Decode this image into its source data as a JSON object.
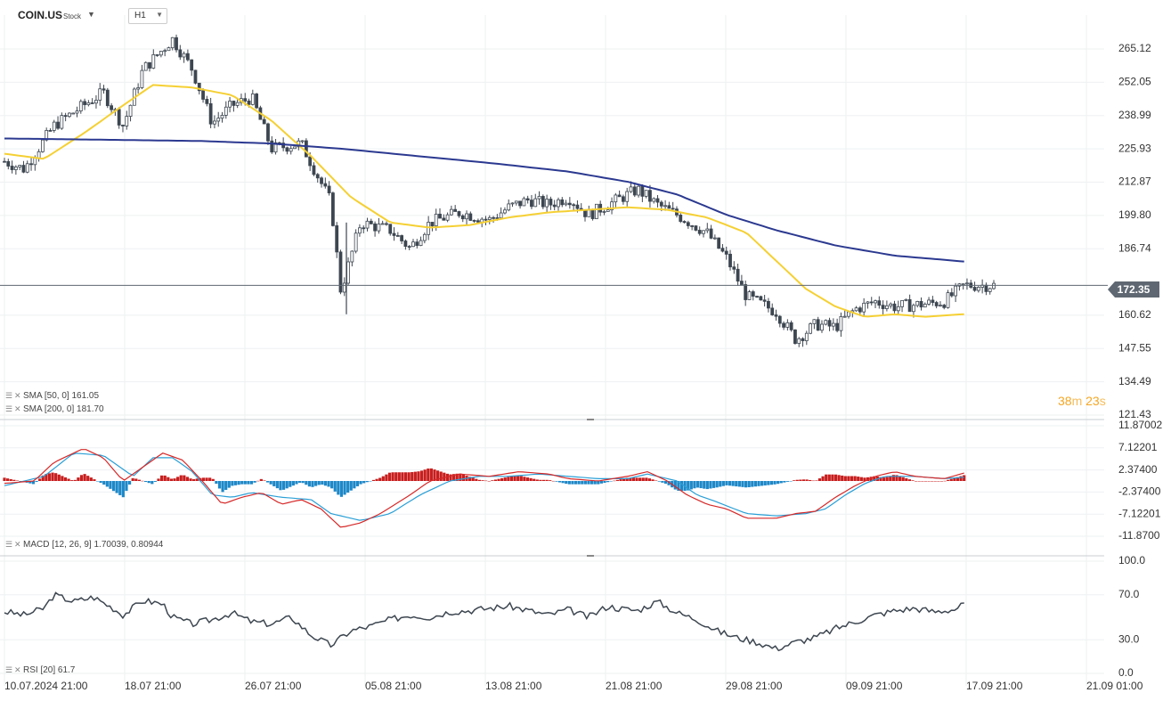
{
  "header": {
    "symbol": "COIN.US",
    "symbol_type": "Stock",
    "timeframe": "H1"
  },
  "legends": {
    "sma50": "SMA [50, 0] 161.05",
    "sma200": "SMA [200, 0] 181.70",
    "macd": "MACD [12, 26, 9] 1.70039, 0.80944",
    "rsi": "RSI [20] 61.7"
  },
  "current_price": "172.35",
  "candle_timer": {
    "minutes": "38",
    "m_unit": "m",
    "seconds": "23",
    "s_unit": "s"
  },
  "colors": {
    "candle": "#3d4650",
    "sma50": "#f5d033",
    "sma200": "#2b3990",
    "macd_line": "#d62828",
    "signal_line": "#2a9fd6",
    "hist_pos": "#c81e1e",
    "hist_neg": "#1e88c8",
    "rsi": "#3d4650",
    "grid": "#eef0f2",
    "axis_text": "#333333",
    "price_line": "#5f6872"
  },
  "chart_data": [
    {
      "type": "candlestick",
      "name": "COIN.US H1",
      "ylim": [
        121.43,
        271.5
      ],
      "y_ticks": [
        "265.12",
        "252.05",
        "238.99",
        "225.93",
        "212.87",
        "199.80",
        "186.74",
        "172.35",
        "160.62",
        "147.55",
        "134.49",
        "121.43"
      ],
      "x_ticks": [
        "10.07.2024  21:00",
        "18.07  21:00",
        "26.07  21:00",
        "05.08  21:00",
        "13.08  21:00",
        "21.08  21:00",
        "29.08  21:00",
        "09.09  21:00",
        "17.09  21:00",
        "21.09  01:00"
      ],
      "close_path": [
        [
          0,
          221
        ],
        [
          0.02,
          218
        ],
        [
          0.05,
          235
        ],
        [
          0.08,
          243
        ],
        [
          0.1,
          248
        ],
        [
          0.12,
          235
        ],
        [
          0.14,
          257
        ],
        [
          0.17,
          269
        ],
        [
          0.19,
          257
        ],
        [
          0.21,
          236
        ],
        [
          0.23,
          243
        ],
        [
          0.25,
          246
        ],
        [
          0.27,
          226
        ],
        [
          0.3,
          228
        ],
        [
          0.33,
          205
        ],
        [
          0.34,
          170
        ],
        [
          0.36,
          197
        ],
        [
          0.39,
          194
        ],
        [
          0.41,
          187
        ],
        [
          0.43,
          197
        ],
        [
          0.46,
          201
        ],
        [
          0.49,
          198
        ],
        [
          0.51,
          203
        ],
        [
          0.53,
          206
        ],
        [
          0.55,
          204
        ],
        [
          0.57,
          207
        ],
        [
          0.59,
          200
        ],
        [
          0.62,
          206
        ],
        [
          0.64,
          210
        ],
        [
          0.66,
          204
        ],
        [
          0.68,
          200
        ],
        [
          0.71,
          193
        ],
        [
          0.73,
          183
        ],
        [
          0.75,
          168
        ],
        [
          0.78,
          162
        ],
        [
          0.8,
          151
        ],
        [
          0.82,
          157
        ],
        [
          0.84,
          156
        ],
        [
          0.86,
          163
        ],
        [
          0.88,
          166
        ],
        [
          0.9,
          164
        ],
        [
          0.93,
          165
        ],
        [
          0.95,
          166
        ],
        [
          0.97,
          172.35
        ]
      ],
      "sma50_path": [
        [
          0,
          224
        ],
        [
          0.04,
          222
        ],
        [
          0.08,
          232
        ],
        [
          0.12,
          243
        ],
        [
          0.15,
          251
        ],
        [
          0.19,
          250
        ],
        [
          0.23,
          247
        ],
        [
          0.27,
          237
        ],
        [
          0.31,
          223
        ],
        [
          0.35,
          207
        ],
        [
          0.39,
          197
        ],
        [
          0.43,
          195
        ],
        [
          0.47,
          196
        ],
        [
          0.51,
          199
        ],
        [
          0.55,
          201
        ],
        [
          0.59,
          202
        ],
        [
          0.63,
          203
        ],
        [
          0.67,
          202
        ],
        [
          0.71,
          199
        ],
        [
          0.75,
          193
        ],
        [
          0.78,
          182
        ],
        [
          0.81,
          171
        ],
        [
          0.84,
          164
        ],
        [
          0.87,
          160
        ],
        [
          0.9,
          161
        ],
        [
          0.93,
          160
        ],
        [
          0.97,
          161.05
        ]
      ],
      "sma200_path": [
        [
          0,
          230
        ],
        [
          0.1,
          229.5
        ],
        [
          0.2,
          229
        ],
        [
          0.27,
          228
        ],
        [
          0.34,
          226
        ],
        [
          0.42,
          223
        ],
        [
          0.5,
          220
        ],
        [
          0.57,
          217
        ],
        [
          0.63,
          213
        ],
        [
          0.68,
          208
        ],
        [
          0.73,
          200
        ],
        [
          0.78,
          194
        ],
        [
          0.84,
          188
        ],
        [
          0.9,
          184
        ],
        [
          0.97,
          181.7
        ]
      ]
    },
    {
      "type": "bar",
      "name": "MACD [12, 26, 9]",
      "ylim": [
        -11.87,
        11.87
      ],
      "y_ticks": [
        "11.87002",
        "7.12201",
        "2.37400",
        "-2.37400",
        "-7.12201",
        "-11.8700"
      ],
      "macd_path": [
        [
          0,
          -0.5
        ],
        [
          0.03,
          0
        ],
        [
          0.05,
          4
        ],
        [
          0.08,
          7
        ],
        [
          0.1,
          5
        ],
        [
          0.12,
          0
        ],
        [
          0.14,
          3
        ],
        [
          0.16,
          6
        ],
        [
          0.18,
          4.5
        ],
        [
          0.2,
          0
        ],
        [
          0.22,
          -5
        ],
        [
          0.24,
          -3.5
        ],
        [
          0.26,
          -2.5
        ],
        [
          0.28,
          -5
        ],
        [
          0.3,
          -4
        ],
        [
          0.32,
          -6
        ],
        [
          0.34,
          -10
        ],
        [
          0.36,
          -9
        ],
        [
          0.38,
          -7
        ],
        [
          0.41,
          -3
        ],
        [
          0.43,
          0
        ],
        [
          0.46,
          1.5
        ],
        [
          0.49,
          1
        ],
        [
          0.52,
          2
        ],
        [
          0.55,
          1.5
        ],
        [
          0.57,
          0.5
        ],
        [
          0.6,
          0
        ],
        [
          0.63,
          1
        ],
        [
          0.65,
          2
        ],
        [
          0.67,
          0
        ],
        [
          0.69,
          -3
        ],
        [
          0.71,
          -5
        ],
        [
          0.73,
          -6
        ],
        [
          0.75,
          -8
        ],
        [
          0.78,
          -8
        ],
        [
          0.8,
          -7
        ],
        [
          0.82,
          -6.5
        ],
        [
          0.84,
          -3.5
        ],
        [
          0.86,
          -1
        ],
        [
          0.88,
          1
        ],
        [
          0.9,
          2
        ],
        [
          0.92,
          1
        ],
        [
          0.95,
          0.5
        ],
        [
          0.97,
          1.7
        ]
      ],
      "signal_path": [
        [
          0,
          -1
        ],
        [
          0.04,
          1
        ],
        [
          0.07,
          6
        ],
        [
          0.1,
          5.5
        ],
        [
          0.13,
          1
        ],
        [
          0.15,
          5
        ],
        [
          0.17,
          5
        ],
        [
          0.19,
          2
        ],
        [
          0.21,
          -3
        ],
        [
          0.23,
          -3.5
        ],
        [
          0.25,
          -2.5
        ],
        [
          0.28,
          -3.5
        ],
        [
          0.31,
          -4
        ],
        [
          0.33,
          -7
        ],
        [
          0.36,
          -8.5
        ],
        [
          0.39,
          -7
        ],
        [
          0.42,
          -3
        ],
        [
          0.45,
          0
        ],
        [
          0.48,
          1
        ],
        [
          0.51,
          1
        ],
        [
          0.54,
          1.5
        ],
        [
          0.57,
          1
        ],
        [
          0.6,
          0.5
        ],
        [
          0.63,
          0.5
        ],
        [
          0.65,
          1.5
        ],
        [
          0.68,
          0
        ],
        [
          0.7,
          -3
        ],
        [
          0.72,
          -4.5
        ],
        [
          0.75,
          -7
        ],
        [
          0.78,
          -7.5
        ],
        [
          0.81,
          -7
        ],
        [
          0.83,
          -6
        ],
        [
          0.85,
          -3
        ],
        [
          0.87,
          -0.5
        ],
        [
          0.89,
          1
        ],
        [
          0.92,
          1
        ],
        [
          0.95,
          0.5
        ],
        [
          0.97,
          0.81
        ]
      ]
    },
    {
      "type": "line",
      "name": "RSI [20]",
      "ylim": [
        0,
        100
      ],
      "y_ticks": [
        "100.0",
        "70.0",
        "30.0",
        "0.0"
      ],
      "rsi_path": [
        [
          0,
          55
        ],
        [
          0.02,
          52
        ],
        [
          0.04,
          58
        ],
        [
          0.05,
          70
        ],
        [
          0.07,
          64
        ],
        [
          0.09,
          68
        ],
        [
          0.11,
          58
        ],
        [
          0.12,
          52
        ],
        [
          0.14,
          65
        ],
        [
          0.16,
          62
        ],
        [
          0.17,
          50
        ],
        [
          0.19,
          44
        ],
        [
          0.21,
          48
        ],
        [
          0.23,
          54
        ],
        [
          0.25,
          46
        ],
        [
          0.27,
          44
        ],
        [
          0.29,
          50
        ],
        [
          0.31,
          34
        ],
        [
          0.33,
          25
        ],
        [
          0.35,
          38
        ],
        [
          0.37,
          42
        ],
        [
          0.39,
          48
        ],
        [
          0.41,
          52
        ],
        [
          0.43,
          50
        ],
        [
          0.45,
          55
        ],
        [
          0.47,
          56
        ],
        [
          0.49,
          58
        ],
        [
          0.51,
          60
        ],
        [
          0.53,
          56
        ],
        [
          0.55,
          52
        ],
        [
          0.57,
          57
        ],
        [
          0.59,
          50
        ],
        [
          0.61,
          60
        ],
        [
          0.62,
          58
        ],
        [
          0.64,
          56
        ],
        [
          0.66,
          64
        ],
        [
          0.68,
          54
        ],
        [
          0.7,
          48
        ],
        [
          0.72,
          38
        ],
        [
          0.74,
          32
        ],
        [
          0.76,
          28
        ],
        [
          0.78,
          22
        ],
        [
          0.8,
          28
        ],
        [
          0.82,
          32
        ],
        [
          0.84,
          40
        ],
        [
          0.86,
          46
        ],
        [
          0.88,
          52
        ],
        [
          0.9,
          56
        ],
        [
          0.92,
          58
        ],
        [
          0.94,
          55
        ],
        [
          0.96,
          57
        ],
        [
          0.97,
          61.7
        ]
      ]
    }
  ]
}
